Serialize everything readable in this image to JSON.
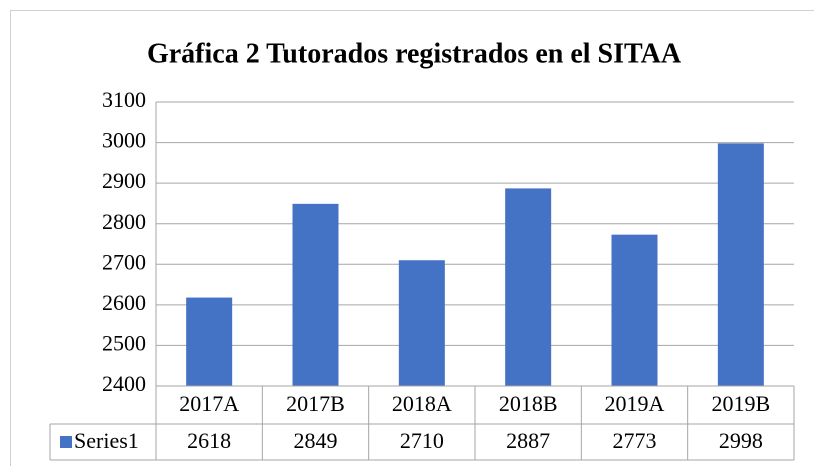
{
  "chart_data": {
    "type": "bar",
    "title": "Gráfica 2 Tutorados registrados en el SITAA",
    "categories": [
      "2017A",
      "2017B",
      "2018A",
      "2018B",
      "2019A",
      "2019B"
    ],
    "series": [
      {
        "name": "Series1",
        "color": "#4472c4",
        "values": [
          2618,
          2849,
          2710,
          2887,
          2773,
          2998
        ]
      }
    ],
    "ylim": [
      2400,
      3100
    ],
    "yticks": [
      2400,
      2500,
      2600,
      2700,
      2800,
      2900,
      3000,
      3100
    ],
    "grid": true,
    "data_table": true
  }
}
